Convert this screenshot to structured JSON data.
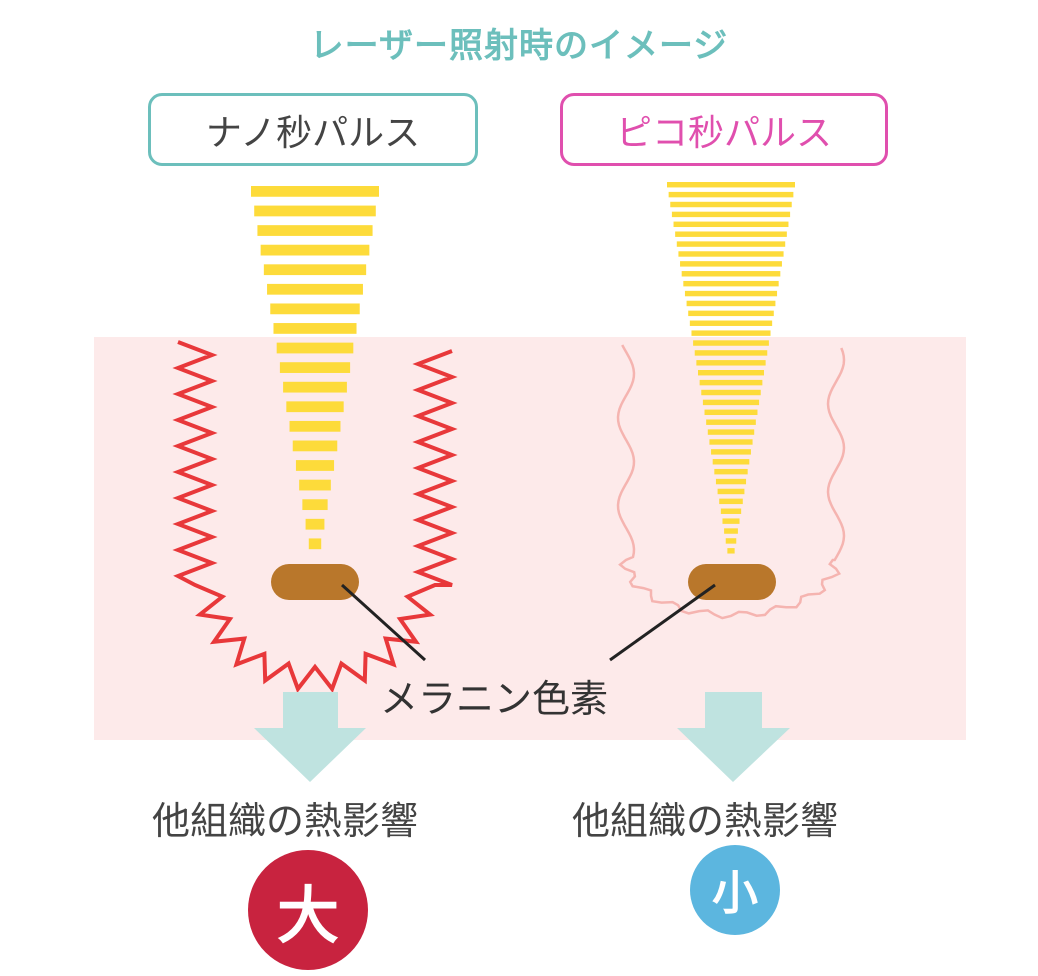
{
  "title": "レーザー照射時のイメージ",
  "nano": {
    "label": "ナノ秒パルス",
    "effect_label": "他組織の熱影響",
    "badge": "大"
  },
  "pico": {
    "label": "ピコ秒パルス",
    "effect_label": "他組織の熱影響",
    "badge": "小"
  },
  "melanin_label": "メラニン色素",
  "colors": {
    "title": "#6cbfbc",
    "nano_border": "#6cbfbc",
    "pico": "#e04fae",
    "beam": "#fddb3a",
    "tissue": "#fdeaea",
    "heat_zigzag": "#e8383a",
    "heat_wave": "#f5b4b0",
    "melanin": "#b9772b",
    "arrow": "#bfe3e0",
    "badge_large": "#c8233f",
    "badge_small": "#5cb6df"
  }
}
